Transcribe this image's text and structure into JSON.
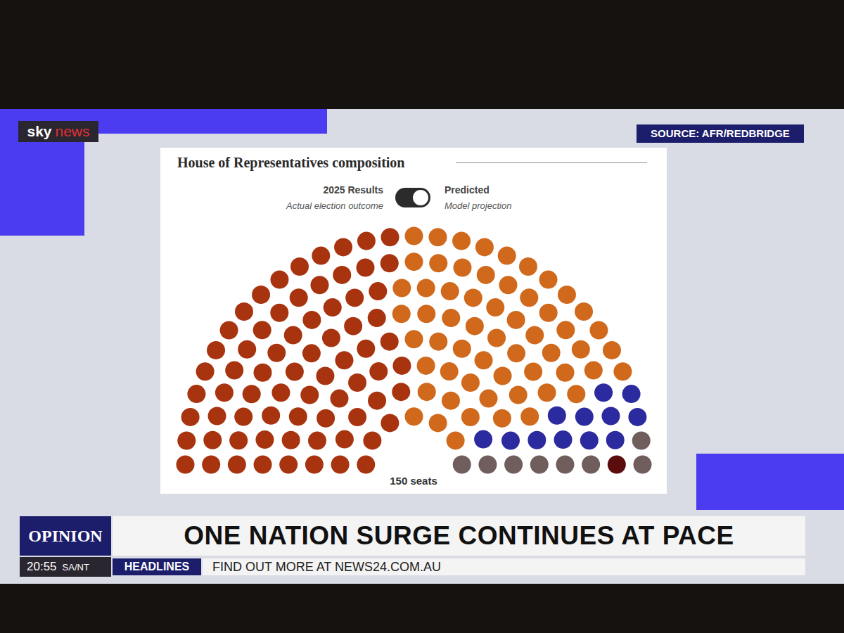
{
  "chart_data": {
    "type": "parliament",
    "title": "House of Representatives composition",
    "categories": [
      null,
      null,
      null,
      null,
      null
    ],
    "values": [
      71,
      58,
      12,
      8,
      1
    ],
    "colors": [
      "#a8330f",
      "#d0691c",
      "#2b2a9e",
      "#6f5e5c",
      "#5b0d0d"
    ],
    "tick_labels": false,
    "caption": "150 seats",
    "toggle": {
      "options": [
        {
          "label": "2025 Results",
          "note": "Actual election outcome"
        },
        {
          "label": "Predicted",
          "note": "Model projection"
        }
      ],
      "selected": "Predicted"
    }
  },
  "screen": {
    "logo": [
      "sky",
      "news"
    ],
    "source": "SOURCE: AFR/REDBRIDGE",
    "segment": "OPINION",
    "headline": "ONE NATION SURGE CONTINUES AT PACE",
    "time": "20:55",
    "timezone": "SA/NT",
    "ticker_label": "HEADLINES",
    "ticker": "FIND OUT MORE AT NEWS24.COM.AU"
  }
}
